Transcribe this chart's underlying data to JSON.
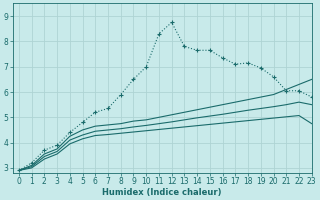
{
  "xlabel": "Humidex (Indice chaleur)",
  "background_color": "#c8eaea",
  "grid_color": "#aed4d4",
  "line_color": "#1a6b6b",
  "xlim": [
    -0.5,
    23
  ],
  "ylim": [
    2.8,
    9.5
  ],
  "xticks": [
    0,
    1,
    2,
    3,
    4,
    5,
    6,
    7,
    8,
    9,
    10,
    11,
    12,
    13,
    14,
    15,
    16,
    17,
    18,
    19,
    20,
    21,
    22,
    23
  ],
  "yticks": [
    3,
    4,
    5,
    6,
    7,
    8,
    9
  ],
  "series": [
    [
      2.9,
      3.2,
      3.7,
      3.9,
      4.4,
      4.8,
      5.2,
      5.35,
      5.9,
      6.5,
      7.0,
      8.3,
      8.75,
      7.8,
      7.65,
      7.65,
      7.35,
      7.1,
      7.15,
      6.95,
      6.6,
      6.05,
      6.05,
      5.8
    ],
    [
      2.9,
      3.1,
      3.55,
      3.75,
      4.25,
      4.5,
      4.65,
      4.7,
      4.75,
      4.85,
      4.9,
      5.0,
      5.1,
      5.2,
      5.3,
      5.4,
      5.5,
      5.6,
      5.7,
      5.8,
      5.9,
      6.1,
      6.3,
      6.5
    ],
    [
      2.9,
      3.05,
      3.45,
      3.65,
      4.1,
      4.3,
      4.45,
      4.5,
      4.55,
      4.62,
      4.68,
      4.75,
      4.82,
      4.9,
      4.98,
      5.05,
      5.12,
      5.2,
      5.28,
      5.35,
      5.42,
      5.5,
      5.6,
      5.5
    ],
    [
      2.9,
      3.0,
      3.35,
      3.55,
      3.95,
      4.15,
      4.28,
      4.32,
      4.37,
      4.42,
      4.47,
      4.52,
      4.57,
      4.62,
      4.67,
      4.72,
      4.77,
      4.82,
      4.87,
      4.92,
      4.97,
      5.02,
      5.07,
      4.75
    ]
  ],
  "marker": "+",
  "marker_size": 3.5,
  "marker_lw": 0.8
}
